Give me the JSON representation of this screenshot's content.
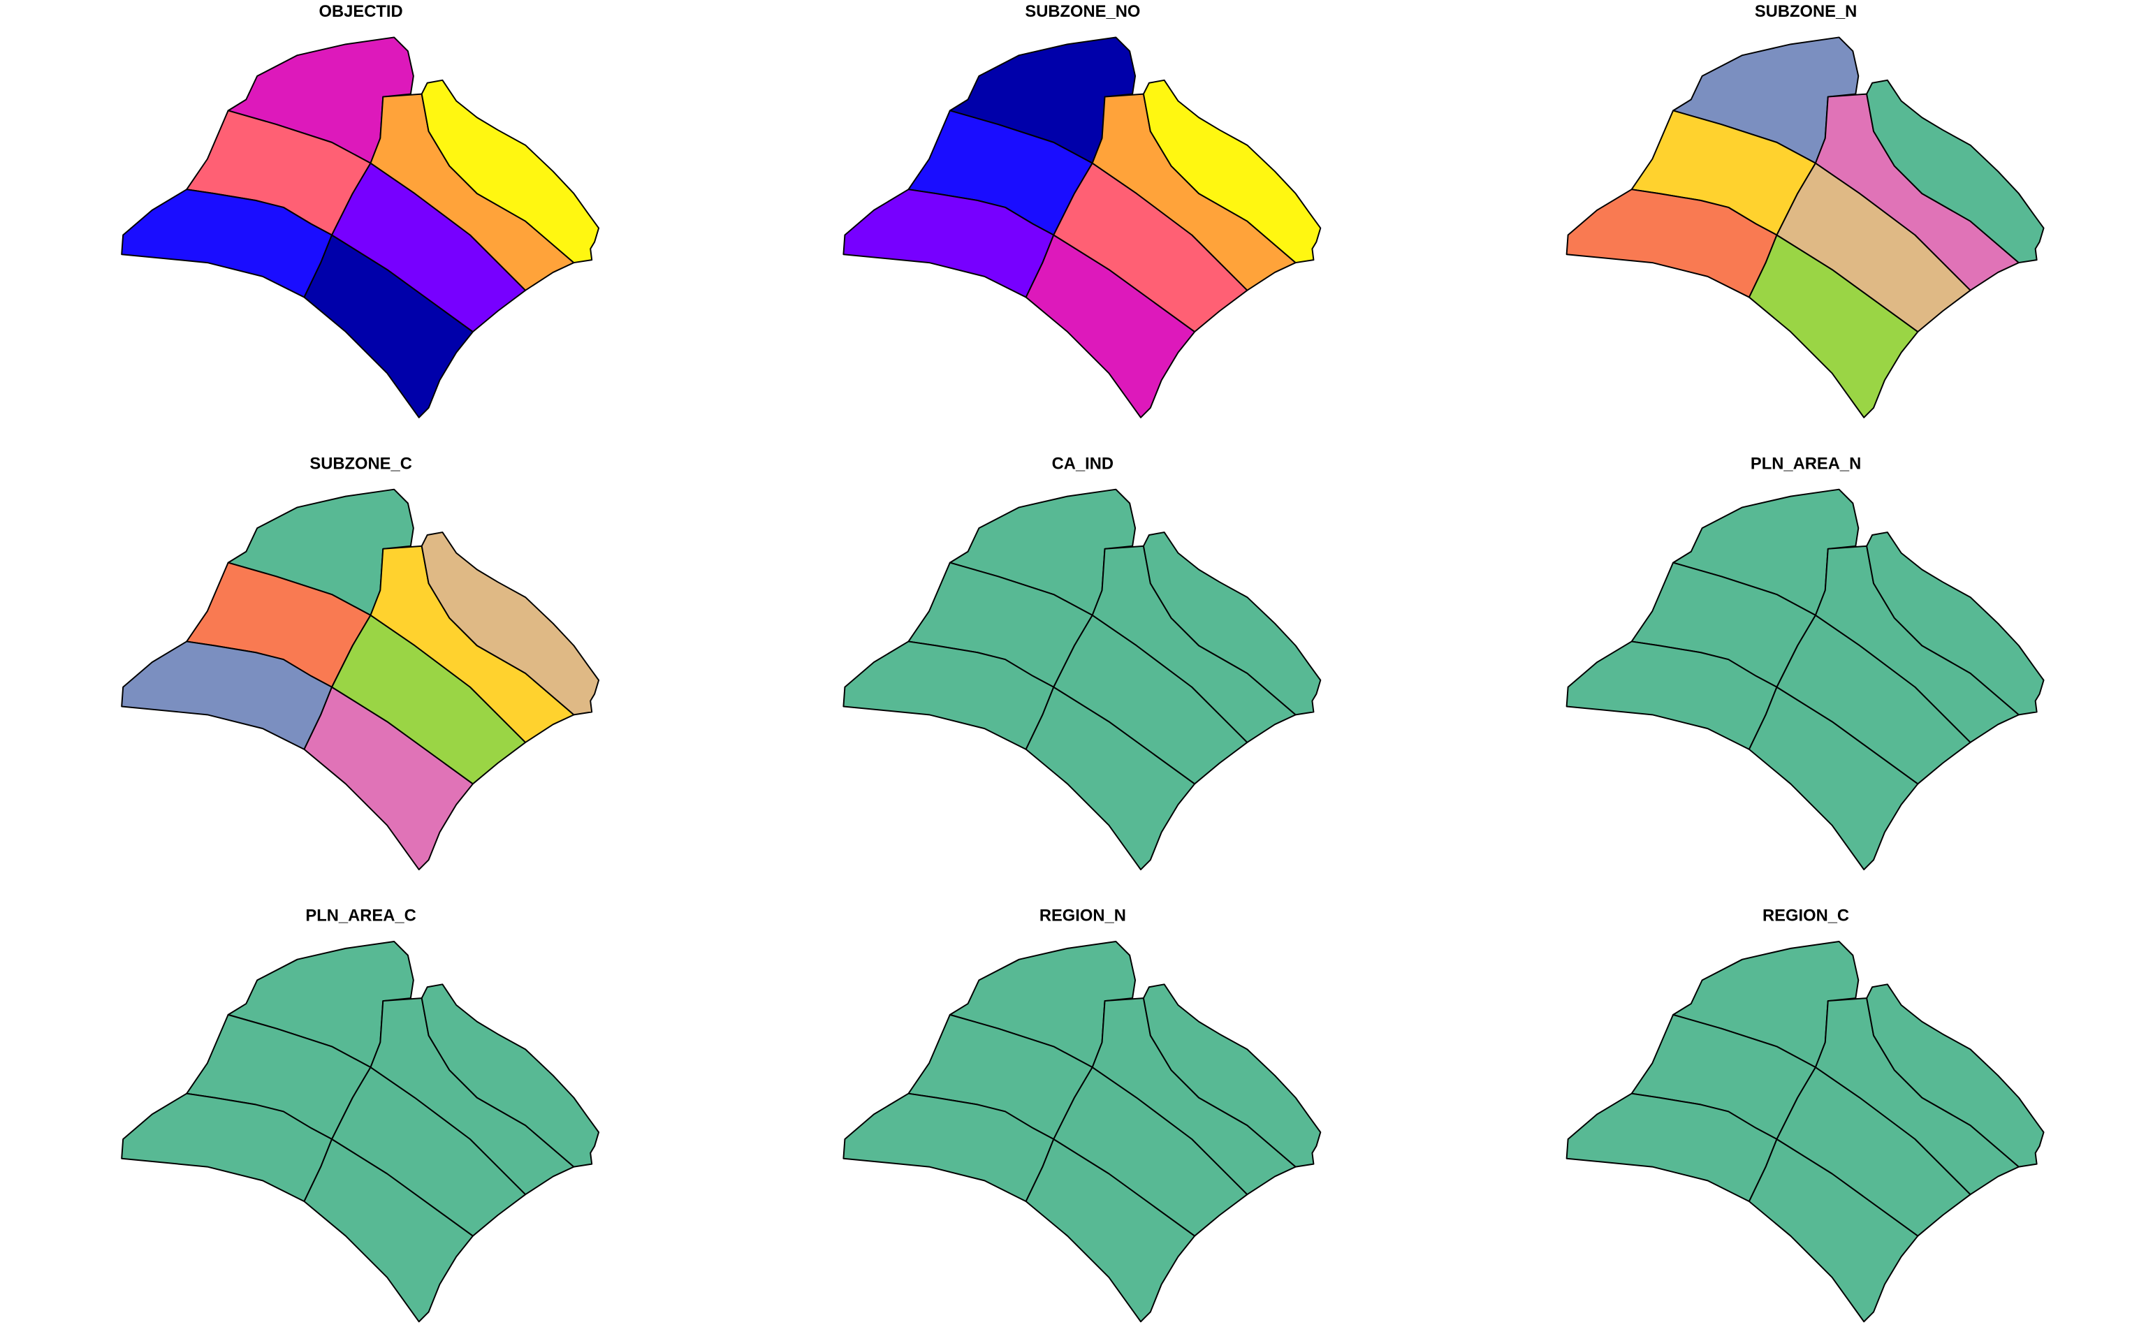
{
  "panels": [
    {
      "title": "OBJECTID",
      "fills": [
        "#DD19BB",
        "#FF6074",
        "#1A0DFF",
        "#0000AA",
        "#7700FF",
        "#FFA33A",
        "#FFF711"
      ]
    },
    {
      "title": "SUBZONE_NO",
      "fills": [
        "#0000AA",
        "#1A0DFF",
        "#7700FF",
        "#DD19BB",
        "#FF6074",
        "#FFA33A",
        "#FFF711"
      ]
    },
    {
      "title": "SUBZONE_N",
      "fills": [
        "#7B8FC0",
        "#FFD22E",
        "#F97A52",
        "#9AD545",
        "#DFB985",
        "#E073B7",
        "#58B994"
      ]
    },
    {
      "title": "SUBZONE_C",
      "fills": [
        "#58B994",
        "#F97A52",
        "#7B8FC0",
        "#E073B7",
        "#9AD545",
        "#FFD22E",
        "#DFB985"
      ]
    },
    {
      "title": "CA_IND",
      "fills": [
        "#58B994",
        "#58B994",
        "#58B994",
        "#58B994",
        "#58B994",
        "#58B994",
        "#58B994"
      ]
    },
    {
      "title": "PLN_AREA_N",
      "fills": [
        "#58B994",
        "#58B994",
        "#58B994",
        "#58B994",
        "#58B994",
        "#58B994",
        "#58B994"
      ]
    },
    {
      "title": "PLN_AREA_C",
      "fills": [
        "#58B994",
        "#58B994",
        "#58B994",
        "#58B994",
        "#58B994",
        "#58B994",
        "#58B994"
      ]
    },
    {
      "title": "REGION_N",
      "fills": [
        "#58B994",
        "#58B994",
        "#58B994",
        "#58B994",
        "#58B994",
        "#58B994",
        "#58B994"
      ]
    },
    {
      "title": "REGION_C",
      "fills": [
        "#58B994",
        "#58B994",
        "#58B994",
        "#58B994",
        "#58B994",
        "#58B994",
        "#58B994"
      ]
    }
  ]
}
